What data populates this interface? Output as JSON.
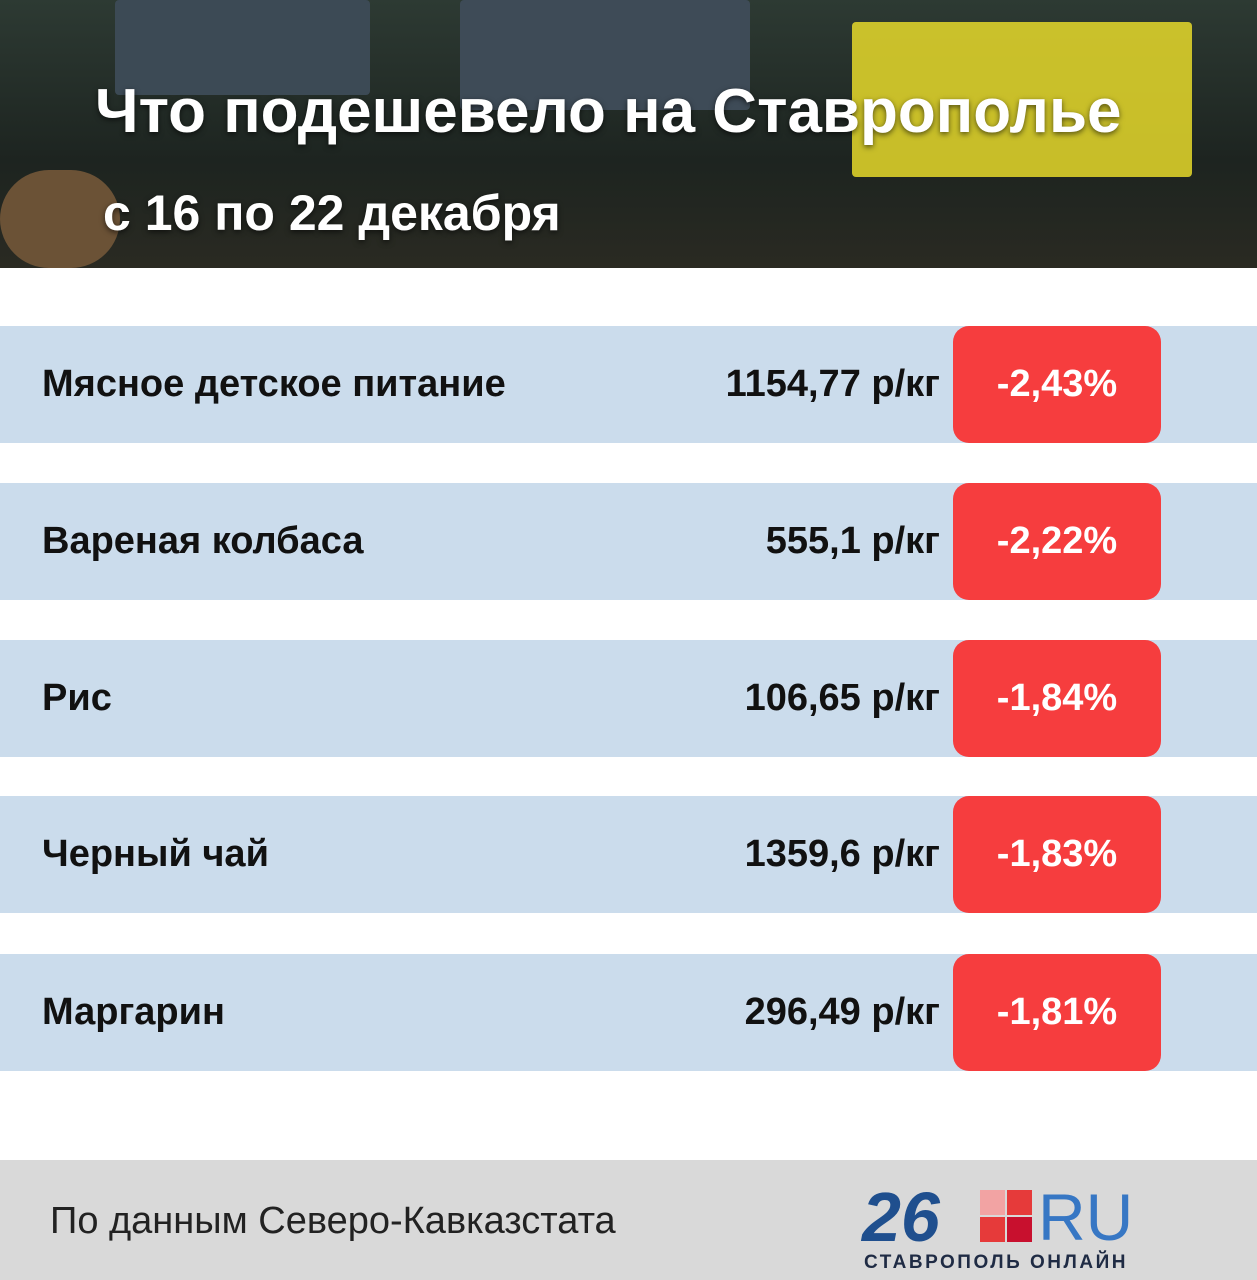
{
  "header": {
    "title": "Что подешевело на Ставрополье",
    "subtitle": "с 16 по 22 декабря"
  },
  "table": {
    "rows": [
      [
        "Мясное детское питание",
        "1154,77 р/кг",
        "-2,43%"
      ],
      [
        "Вареная колбаса",
        "555,1 р/кг",
        "-2,22%"
      ],
      [
        "Рис",
        "106,65 р/кг",
        "-1,84%"
      ],
      [
        "Черный чай",
        "1359,6 р/кг",
        "-1,83%"
      ],
      [
        "Маргарин",
        "296,49 р/кг",
        "-1,81%"
      ]
    ]
  },
  "footer": {
    "source": "По данным Северо-Кавказстата",
    "logo_number": "26",
    "logo_domain": "RU",
    "logo_caption": "СТАВРОПОЛЬ ОНЛАЙН"
  }
}
